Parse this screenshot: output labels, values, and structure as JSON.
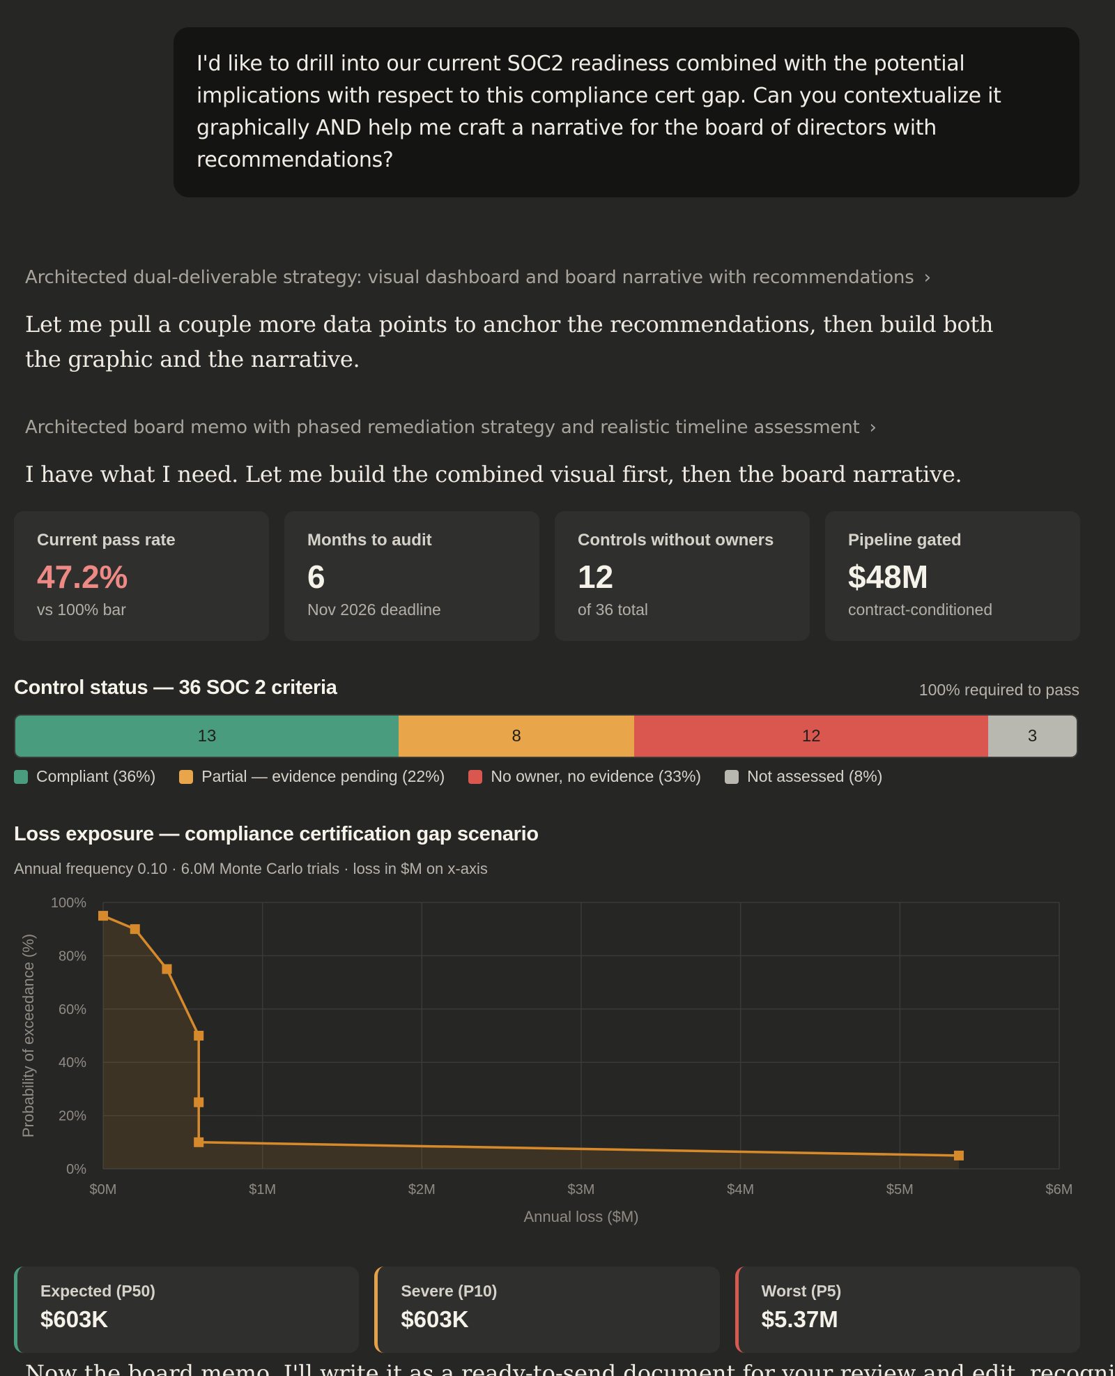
{
  "user_message": "I'd like to drill into our current SOC2 readiness combined with the potential implications with respect to this compliance cert gap. Can you contextualize it graphically AND help me craft a narrative for the board of directors with recommendations?",
  "thinking_1": "Architected dual-deliverable strategy: visual dashboard and board narrative with recommendations",
  "prose_1": "Let me pull a couple more data points to anchor the recommendations, then build both the graphic and the narrative.",
  "thinking_2": "Architected board memo with phased remediation strategy and realistic timeline assessment",
  "prose_2": "I have what I need. Let me build the combined visual first, then the board narrative.",
  "stats": [
    {
      "label": "Current pass rate",
      "value": "47.2%",
      "sub": "vs 100% bar"
    },
    {
      "label": "Months to audit",
      "value": "6",
      "sub": "Nov 2026 deadline"
    },
    {
      "label": "Controls without owners",
      "value": "12",
      "sub": "of 36 total"
    },
    {
      "label": "Pipeline gated",
      "value": "$48M",
      "sub": "contract-conditioned"
    }
  ],
  "control_status": {
    "title": "Control status — 36 SOC 2 criteria",
    "note": "100% required to pass",
    "segments": [
      {
        "count": "13",
        "legend": "Compliant (36%)",
        "color": "#4a9c7e",
        "value": 13
      },
      {
        "count": "8",
        "legend": "Partial — evidence pending (22%)",
        "color": "#e8a54a",
        "value": 8
      },
      {
        "count": "12",
        "legend": "No owner, no evidence (33%)",
        "color": "#d9574f",
        "value": 12
      },
      {
        "count": "3",
        "legend": "Not assessed (8%)",
        "color": "#b8b7b0",
        "value": 3
      }
    ]
  },
  "loss_section": {
    "title": "Loss exposure — compliance certification gap scenario",
    "subtitle": "Annual frequency 0.10 · 6.0M Monte Carlo trials · loss in $M on x-axis"
  },
  "chart_data": {
    "type": "area",
    "xlabel": "Annual loss ($M)",
    "ylabel": "Probability of exceedance (%)",
    "xlim": [
      0,
      6
    ],
    "ylim": [
      0,
      100
    ],
    "x_ticks": [
      "$0M",
      "$1M",
      "$2M",
      "$3M",
      "$4M",
      "$5M",
      "$6M"
    ],
    "y_ticks": [
      "0%",
      "20%",
      "40%",
      "60%",
      "80%",
      "100%"
    ],
    "grid": true,
    "line_color": "#d68a2c",
    "x": [
      0.0,
      0.2,
      0.4,
      0.6,
      0.6,
      0.6,
      5.37
    ],
    "y": [
      95,
      90,
      75,
      50,
      25,
      10,
      5
    ]
  },
  "outcomes": [
    {
      "label": "Expected (P50)",
      "value": "$603K"
    },
    {
      "label": "Severe (P10)",
      "value": "$603K"
    },
    {
      "label": "Worst (P5)",
      "value": "$5.37M"
    }
  ],
  "prose_3_partial": "Now the board memo. I'll write it as a ready-to-send document for your review and edit, recognizing"
}
